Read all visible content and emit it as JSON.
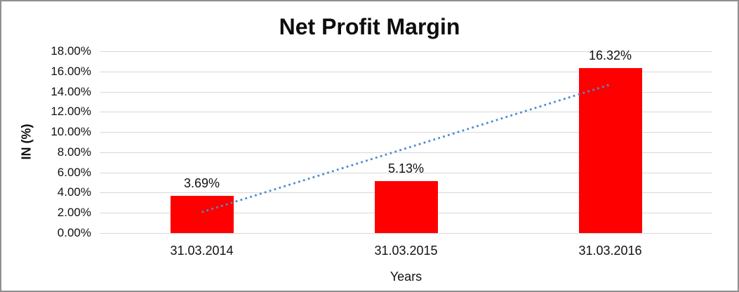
{
  "chart_data": {
    "type": "bar",
    "title": "Net Profit Margin",
    "categories": [
      "31.03.2014",
      "31.03.2015",
      "31.03.2016"
    ],
    "values": [
      3.69,
      5.13,
      16.32
    ],
    "value_labels": [
      "3.69%",
      "5.13%",
      "16.32%"
    ],
    "xlabel": "Years",
    "ylabel": "IN (%)",
    "ylim": [
      0,
      18
    ],
    "ytick_step": 2,
    "ytick_labels": [
      "0.00%",
      "2.00%",
      "4.00%",
      "6.00%",
      "8.00%",
      "10.00%",
      "12.00%",
      "14.00%",
      "16.00%",
      "18.00%"
    ],
    "grid": true,
    "legend": "none",
    "bar_color": "#FF0000",
    "gridline_color": "#D9D9D9",
    "text_color": "#111111",
    "trendline": {
      "type": "linear",
      "style": "dotted",
      "color": "#4F8BD0",
      "start_value": 2.07,
      "end_value": 14.7
    }
  }
}
